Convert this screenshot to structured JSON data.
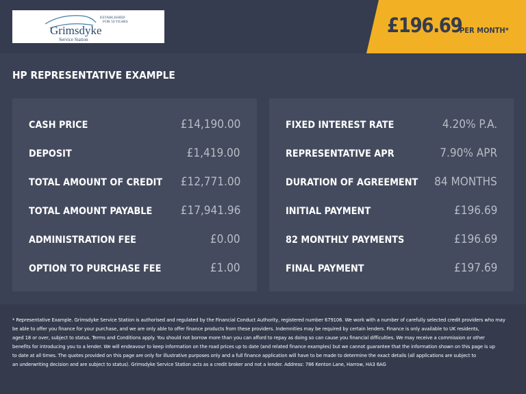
{
  "header": {
    "logo": {
      "name": "Grimsdyke",
      "subtitle": "Service Station",
      "tagline": "ESTABLISHED FOR 50 YEARS"
    },
    "price": "£196.69",
    "price_suffix": "PER MONTH*",
    "accent": "#f2b124"
  },
  "title": "HP REPRESENTATIVE EXAMPLE",
  "left": [
    {
      "label": "CASH PRICE",
      "value": "£14,190.00"
    },
    {
      "label": "DEPOSIT",
      "value": "£1,419.00"
    },
    {
      "label": "TOTAL AMOUNT OF CREDIT",
      "value": "£12,771.00"
    },
    {
      "label": "TOTAL AMOUNT PAYABLE",
      "value": "£17,941.96"
    },
    {
      "label": "ADMINISTRATION FEE",
      "value": "£0.00"
    },
    {
      "label": "OPTION TO PURCHASE FEE",
      "value": "£1.00"
    }
  ],
  "right": [
    {
      "label": "FIXED INTEREST RATE",
      "value": "4.20% P.A."
    },
    {
      "label": "REPRESENTATIVE APR",
      "value": "7.90% APR"
    },
    {
      "label": "DURATION OF AGREEMENT",
      "value": "84 MONTHS"
    },
    {
      "label": "INITIAL PAYMENT",
      "value": "£196.69"
    },
    {
      "label": "82 MONTHLY PAYMENTS",
      "value": "£196.69"
    },
    {
      "label": "FINAL PAYMENT",
      "value": "£197.69"
    }
  ],
  "footer": [
    "* Representative Example. Grimsdyke Service Station is authorised and regulated by the Financial Conduct Authority, registered number 679106. We work with a number of carefully selected credit providers who may",
    "be able to offer you finance for your purchase, and we are only able to offer finance products from these providers. Indemnities may be required by certain lenders. Finance is only available to UK residents,",
    "aged 18 or over, subject to status. Terms and Conditions apply. You should not borrow more than you can afford to repay as doing so can cause you financial difficulties. We may receive a commission or other",
    "benefits for introducing you to a lender. We will endeavour to keep information on the road prices up to date (and related finance examples) but we cannot guarantee that the information shown on this page is up",
    "to date at all times. The quotes provided on this page are only for illustrative purposes only and a full finance application will have to be made to determine the exact details (all applications are subject to",
    "an underwriting decision and are subject to status). Grimsdyke Service Station acts as a credit broker and not a lender. Address: 786 Kenton Lane, Harrow, HA3 6AG"
  ]
}
